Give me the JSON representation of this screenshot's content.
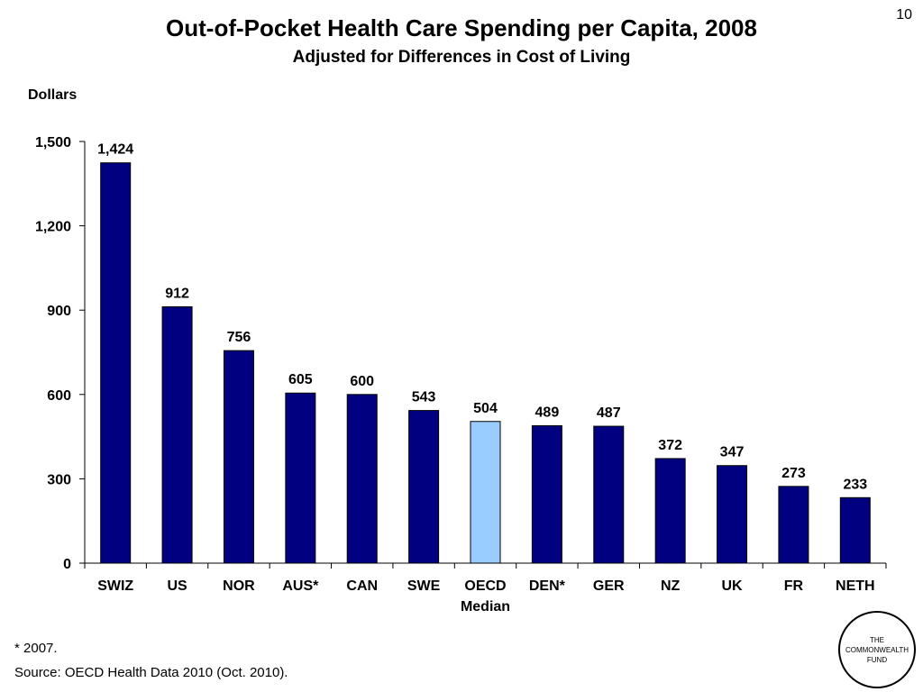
{
  "slide_number": "10",
  "footnote": "* 2007.",
  "source": "Source: OECD Health Data 2010 (Oct. 2010).",
  "logo": {
    "lines": [
      "THE",
      "COMMONWEALTH",
      "FUND"
    ]
  },
  "colors": {
    "bar": "#000080",
    "highlight": "#99ccff",
    "axis": "#000000"
  },
  "chart_data": {
    "type": "bar",
    "title": "Out-of-Pocket Health Care Spending per Capita, 2008",
    "subtitle": "Adjusted for Differences in Cost of Living",
    "ylabel": "Dollars",
    "xlabel": "",
    "categories": [
      "SWIZ",
      "US",
      "NOR",
      "AUS*",
      "CAN",
      "SWE",
      "OECD Median",
      "DEN*",
      "GER",
      "NZ",
      "UK",
      "FR",
      "NETH"
    ],
    "values": [
      1424,
      912,
      756,
      605,
      600,
      543,
      504,
      489,
      487,
      372,
      347,
      273,
      233
    ],
    "data_labels": [
      "1,424",
      "912",
      "756",
      "605",
      "600",
      "543",
      "504",
      "489",
      "487",
      "372",
      "347",
      "273",
      "233"
    ],
    "highlight_category": "OECD Median",
    "ylim": [
      0,
      1500
    ],
    "yticks": [
      0,
      300,
      600,
      900,
      1200,
      1500
    ],
    "ytick_labels": [
      "0",
      "300",
      "600",
      "900",
      "1,200",
      "1,500"
    ],
    "grid": false,
    "legend": "none"
  }
}
